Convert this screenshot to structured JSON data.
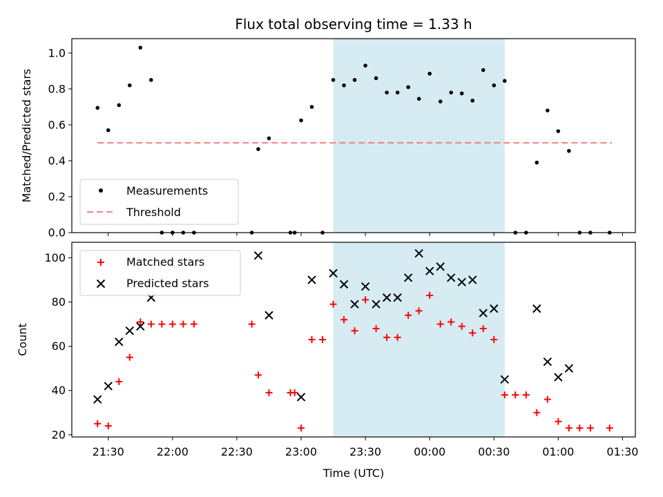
{
  "chart_data": [
    {
      "type": "scatter",
      "title": "Flux total observing time = 1.33 h",
      "xlabel": "",
      "ylabel": "Matched/Predicted stars",
      "ylim": [
        0,
        1.08
      ],
      "yticks": [
        "0.0",
        "0.2",
        "0.4",
        "0.6",
        "0.8",
        "1.0"
      ],
      "ytick_values": [
        0,
        0.2,
        0.4,
        0.6,
        0.8,
        1.0
      ],
      "xlim": [
        "21:13",
        "01:36"
      ],
      "highlight_span": [
        "23:15",
        "00:35"
      ],
      "highlight_color": "#add8e6",
      "legend": {
        "placement": "lower-left",
        "entries": [
          "Measurements",
          "Threshold"
        ]
      },
      "threshold": {
        "name": "Threshold",
        "value": 0.5,
        "x_start": "21:25",
        "x_end": "01:25",
        "color": "#f08080"
      },
      "series": [
        {
          "name": "Measurements",
          "color": "#000000",
          "x": [
            "21:25",
            "21:30",
            "21:35",
            "21:40",
            "21:45",
            "21:50",
            "21:55",
            "22:00",
            "22:05",
            "22:10",
            "22:37",
            "22:40",
            "22:45",
            "22:55",
            "22:57",
            "23:00",
            "23:05",
            "23:10",
            "23:15",
            "23:20",
            "23:25",
            "23:30",
            "23:35",
            "23:40",
            "23:45",
            "23:50",
            "23:55",
            "00:00",
            "00:05",
            "00:10",
            "00:15",
            "00:20",
            "00:25",
            "00:30",
            "00:35",
            "00:40",
            "00:45",
            "00:50",
            "00:55",
            "01:00",
            "01:05",
            "01:10",
            "01:15",
            "01:24"
          ],
          "y": [
            0.695,
            0.57,
            0.71,
            0.82,
            1.03,
            0.85,
            0.0,
            0.0,
            0.0,
            0.0,
            0.0,
            0.465,
            0.525,
            0.0,
            0.0,
            0.625,
            0.7,
            0.0,
            0.85,
            0.82,
            0.85,
            0.93,
            0.86,
            0.78,
            0.78,
            0.81,
            0.745,
            0.885,
            0.73,
            0.78,
            0.775,
            0.735,
            0.905,
            0.82,
            0.845,
            0.0,
            0.0,
            0.39,
            0.68,
            0.565,
            0.455,
            0.0,
            0.0,
            0.0
          ]
        }
      ]
    },
    {
      "type": "scatter",
      "title": "",
      "xlabel": "Time (UTC)",
      "ylabel": "Count",
      "ylim": [
        19,
        107
      ],
      "yticks": [
        "20",
        "40",
        "60",
        "80",
        "100"
      ],
      "ytick_values": [
        20,
        40,
        60,
        80,
        100
      ],
      "xlim": [
        "21:13",
        "01:36"
      ],
      "xticks": [
        "21:30",
        "22:00",
        "22:30",
        "23:00",
        "23:30",
        "00:00",
        "00:30",
        "01:00",
        "01:30"
      ],
      "highlight_span": [
        "23:15",
        "00:35"
      ],
      "highlight_color": "#add8e6",
      "legend": {
        "placement": "top-left",
        "entries": [
          "Matched stars",
          "Predicted stars"
        ]
      },
      "series": [
        {
          "name": "Matched stars",
          "marker": "plus",
          "color": "#ff0000",
          "x": [
            "21:25",
            "21:30",
            "21:35",
            "21:40",
            "21:45",
            "21:50",
            "21:55",
            "22:00",
            "22:05",
            "22:10",
            "22:37",
            "22:40",
            "22:45",
            "22:55",
            "22:57",
            "23:00",
            "23:05",
            "23:10",
            "23:15",
            "23:20",
            "23:25",
            "23:30",
            "23:35",
            "23:40",
            "23:45",
            "23:50",
            "23:55",
            "00:00",
            "00:05",
            "00:10",
            "00:15",
            "00:20",
            "00:25",
            "00:30",
            "00:35",
            "00:40",
            "00:45",
            "00:50",
            "00:55",
            "01:00",
            "01:05",
            "01:10",
            "01:15",
            "01:24"
          ],
          "y": [
            25,
            24,
            44,
            55,
            71,
            70,
            70,
            70,
            70,
            70,
            70,
            47,
            39,
            39,
            39,
            23,
            63,
            63,
            79,
            72,
            67,
            81,
            68,
            64,
            64,
            74,
            76,
            83,
            70,
            71,
            69,
            66,
            68,
            63,
            38,
            38,
            38,
            30,
            36,
            26,
            23,
            23,
            23,
            23
          ]
        },
        {
          "name": "Predicted stars",
          "marker": "x",
          "color": "#000000",
          "x": [
            "21:25",
            "21:30",
            "21:35",
            "21:40",
            "21:45",
            "21:50",
            "22:40",
            "22:45",
            "23:00",
            "23:05",
            "23:15",
            "23:20",
            "23:25",
            "23:30",
            "23:35",
            "23:40",
            "23:45",
            "23:50",
            "23:55",
            "00:00",
            "00:05",
            "00:10",
            "00:15",
            "00:20",
            "00:25",
            "00:30",
            "00:35",
            "00:50",
            "00:55",
            "01:00",
            "01:05"
          ],
          "y": [
            36,
            42,
            62,
            67,
            69,
            82,
            101,
            74,
            37,
            90,
            93,
            88,
            79,
            87,
            79,
            82,
            82,
            91,
            102,
            94,
            96,
            91,
            89,
            90,
            75,
            77,
            45,
            77,
            53,
            46,
            50
          ]
        }
      ]
    }
  ]
}
